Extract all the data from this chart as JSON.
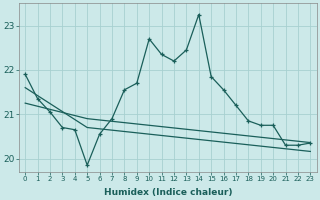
{
  "xlabel": "Humidex (Indice chaleur)",
  "ylabel": "",
  "xlim": [
    -0.5,
    23.5
  ],
  "ylim": [
    19.7,
    23.5
  ],
  "yticks": [
    20,
    21,
    22,
    23
  ],
  "xticks": [
    0,
    1,
    2,
    3,
    4,
    5,
    6,
    7,
    8,
    9,
    10,
    11,
    12,
    13,
    14,
    15,
    16,
    17,
    18,
    19,
    20,
    21,
    22,
    23
  ],
  "background_color": "#cce9e9",
  "grid_color": "#a8d0d0",
  "line_color": "#1a5f5a",
  "line1_x": [
    0,
    1,
    2,
    3,
    4,
    5,
    6,
    7,
    8,
    9,
    10,
    11,
    12,
    13,
    14,
    15,
    16,
    17,
    18,
    19,
    20,
    21,
    22,
    23
  ],
  "line1_y": [
    21.9,
    21.35,
    21.05,
    20.7,
    20.65,
    19.85,
    20.55,
    20.9,
    21.55,
    21.7,
    22.7,
    22.35,
    22.2,
    22.45,
    23.25,
    21.85,
    21.55,
    21.2,
    20.85,
    20.75,
    20.75,
    20.3,
    20.3,
    20.35
  ],
  "line2_x": [
    0,
    1,
    2,
    3,
    4,
    5,
    6,
    7,
    8,
    9,
    10,
    11,
    12,
    13,
    14,
    15,
    16,
    17,
    18,
    19,
    20,
    21,
    22,
    23
  ],
  "line2_y": [
    21.6,
    21.42,
    21.24,
    21.06,
    20.88,
    20.7,
    20.67,
    20.64,
    20.61,
    20.58,
    20.55,
    20.52,
    20.49,
    20.46,
    20.43,
    20.4,
    20.37,
    20.34,
    20.31,
    20.28,
    20.25,
    20.22,
    20.19,
    20.16
  ],
  "line3_x": [
    0,
    1,
    2,
    3,
    4,
    5,
    6,
    7,
    8,
    9,
    10,
    11,
    12,
    13,
    14,
    15,
    16,
    17,
    18,
    19,
    20,
    21,
    22,
    23
  ],
  "line3_y": [
    21.25,
    21.18,
    21.11,
    21.04,
    20.97,
    20.9,
    20.87,
    20.84,
    20.81,
    20.78,
    20.75,
    20.72,
    20.69,
    20.66,
    20.63,
    20.6,
    20.57,
    20.54,
    20.51,
    20.48,
    20.45,
    20.42,
    20.39,
    20.36
  ]
}
